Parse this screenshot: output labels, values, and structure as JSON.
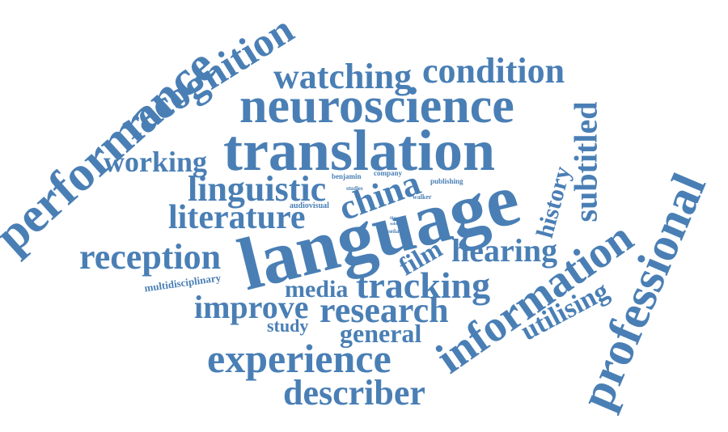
{
  "accent_color": "#4a7fb5",
  "words": {
    "language": "language",
    "translation": "translation",
    "neuroscience": "neuroscience",
    "performance": "performance",
    "professional": "professional",
    "information": "information",
    "experience": "experience",
    "recognition": "recognition",
    "research": "research",
    "describer": "describer",
    "condition": "condition",
    "watching": "watching",
    "literature": "literature",
    "linguistic": "linguistic",
    "reception": "reception",
    "tracking": "tracking",
    "improve": "improve",
    "china": "china",
    "subtitled": "subtitled",
    "hearing": "hearing",
    "working": "working",
    "utilising": "utilising",
    "general": "general",
    "history": "history",
    "film": "film",
    "media": "media",
    "study": "study",
    "multidisciplinary": "multidisciplinary",
    "audiovisual": "audiovisual",
    "benjamin": "benjamin",
    "company": "company",
    "publishing": "publishing",
    "studies": "studies",
    "walker": "walker",
    "resena": "reseña",
    "tiny_a": "films",
    "tiny_b": "subti"
  }
}
